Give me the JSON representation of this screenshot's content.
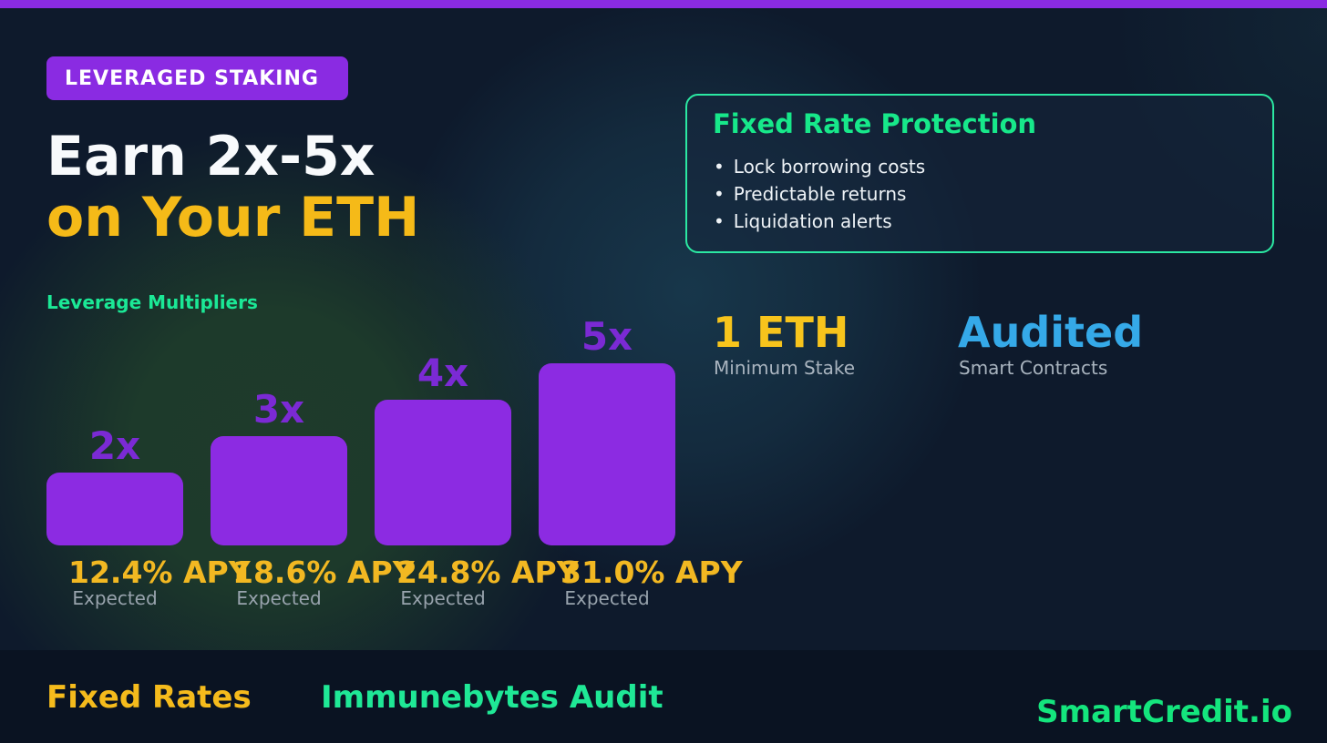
{
  "badge": {
    "label": "LEVERAGED STAKING"
  },
  "headline": {
    "line1": "Earn 2x-5x",
    "line2": "on Your ETH"
  },
  "protection_card": {
    "title": "Fixed Rate Protection",
    "bullet_glyph": "•",
    "bullets": [
      "Lock borrowing costs",
      "Predictable returns",
      "Liquidation alerts"
    ]
  },
  "chart_data": {
    "type": "bar",
    "title": "Leverage Multipliers",
    "categories": [
      "2x",
      "3x",
      "4x",
      "5x"
    ],
    "values": [
      2,
      3,
      4,
      5
    ],
    "apy_labels": [
      "12.4% APY",
      "18.6% APY",
      "24.8% APY",
      "31.0% APY"
    ],
    "apy_values_percent": [
      12.4,
      18.6,
      24.8,
      31.0
    ],
    "bar_sublabel": "Expected",
    "grid": false,
    "legend": false,
    "bar_color": "#8c2be2",
    "category_label_color": "#7b2ad4",
    "apy_label_color": "#f2b822"
  },
  "stats": {
    "min_stake": {
      "value": "1 ETH",
      "label": "Minimum Stake",
      "color": "#f7c41c"
    },
    "audited": {
      "value": "Audited",
      "label": "Smart Contracts",
      "color": "#35a9e8"
    }
  },
  "footer": {
    "fixed_rates": {
      "label": "Fixed Rates",
      "color": "#f5bb1c"
    },
    "audit": {
      "label": "Immunebytes Audit",
      "color": "#1fe896"
    },
    "brand": "SmartCredit.io"
  },
  "palette": {
    "background": "#0e1a2c",
    "footer_background": "#0a1322",
    "accent_purple": "#8a2be2",
    "accent_green": "#1fe896",
    "accent_yellow": "#f2b822",
    "accent_blue": "#35a9e8",
    "card_border": "#2be8a2"
  }
}
